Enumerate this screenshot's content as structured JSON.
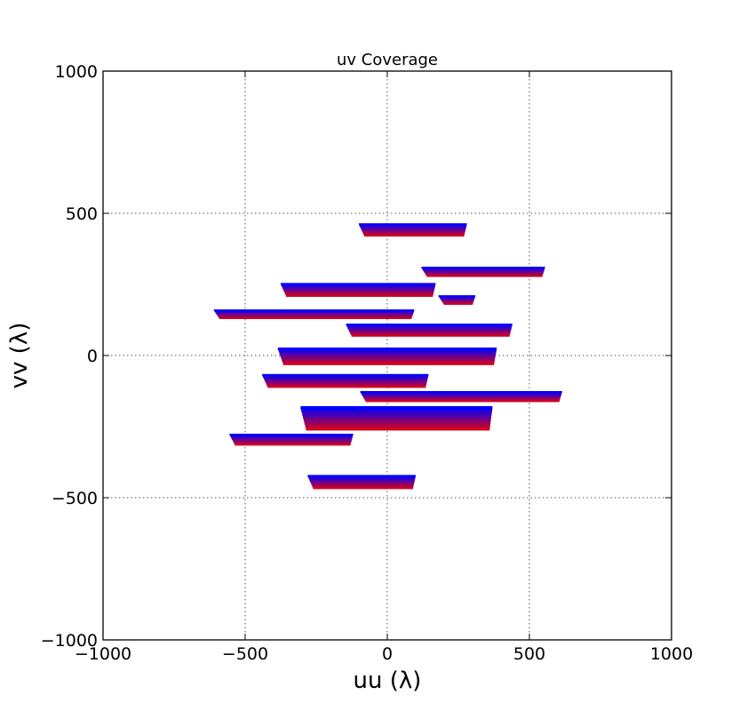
{
  "chart_data": {
    "type": "scatter",
    "title": "uv Coverage",
    "xlabel": "uu (λ)",
    "ylabel": "vv (λ)",
    "xlim": [
      -1000,
      1000
    ],
    "ylim": [
      -1000,
      1000
    ],
    "xticks": [
      -1000,
      -500,
      0,
      500,
      1000
    ],
    "yticks": [
      -1000,
      -500,
      0,
      500,
      1000
    ],
    "xtick_labels": [
      "−1000",
      "−500",
      "0",
      "500",
      "1000"
    ],
    "ytick_labels": [
      "−1000",
      "−500",
      "0",
      "500",
      "1000"
    ],
    "grid": true,
    "color_gradient": [
      "#d6001c",
      "#0000ff"
    ],
    "tracks": [
      {
        "u": [
          -100,
          280
        ],
        "v_top": 465,
        "v_bottom": 420
      },
      {
        "u": [
          120,
          555
        ],
        "v_top": 312,
        "v_bottom": 278
      },
      {
        "u": [
          180,
          310
        ],
        "v_top": 212,
        "v_bottom": 180
      },
      {
        "u": [
          -375,
          170
        ],
        "v_top": 255,
        "v_bottom": 208
      },
      {
        "u": [
          -610,
          95
        ],
        "v_top": 162,
        "v_bottom": 130
      },
      {
        "u": [
          -145,
          440
        ],
        "v_top": 112,
        "v_bottom": 68
      },
      {
        "u": [
          -385,
          385
        ],
        "v_top": 28,
        "v_bottom": -32
      },
      {
        "u": [
          -440,
          145
        ],
        "v_top": -65,
        "v_bottom": -112
      },
      {
        "u": [
          -95,
          615
        ],
        "v_top": -125,
        "v_bottom": -162
      },
      {
        "u": [
          -305,
          370
        ],
        "v_top": -178,
        "v_bottom": -262
      },
      {
        "u": [
          -555,
          -120
        ],
        "v_top": -275,
        "v_bottom": -315
      },
      {
        "u": [
          -280,
          100
        ],
        "v_top": -420,
        "v_bottom": -468
      }
    ]
  }
}
